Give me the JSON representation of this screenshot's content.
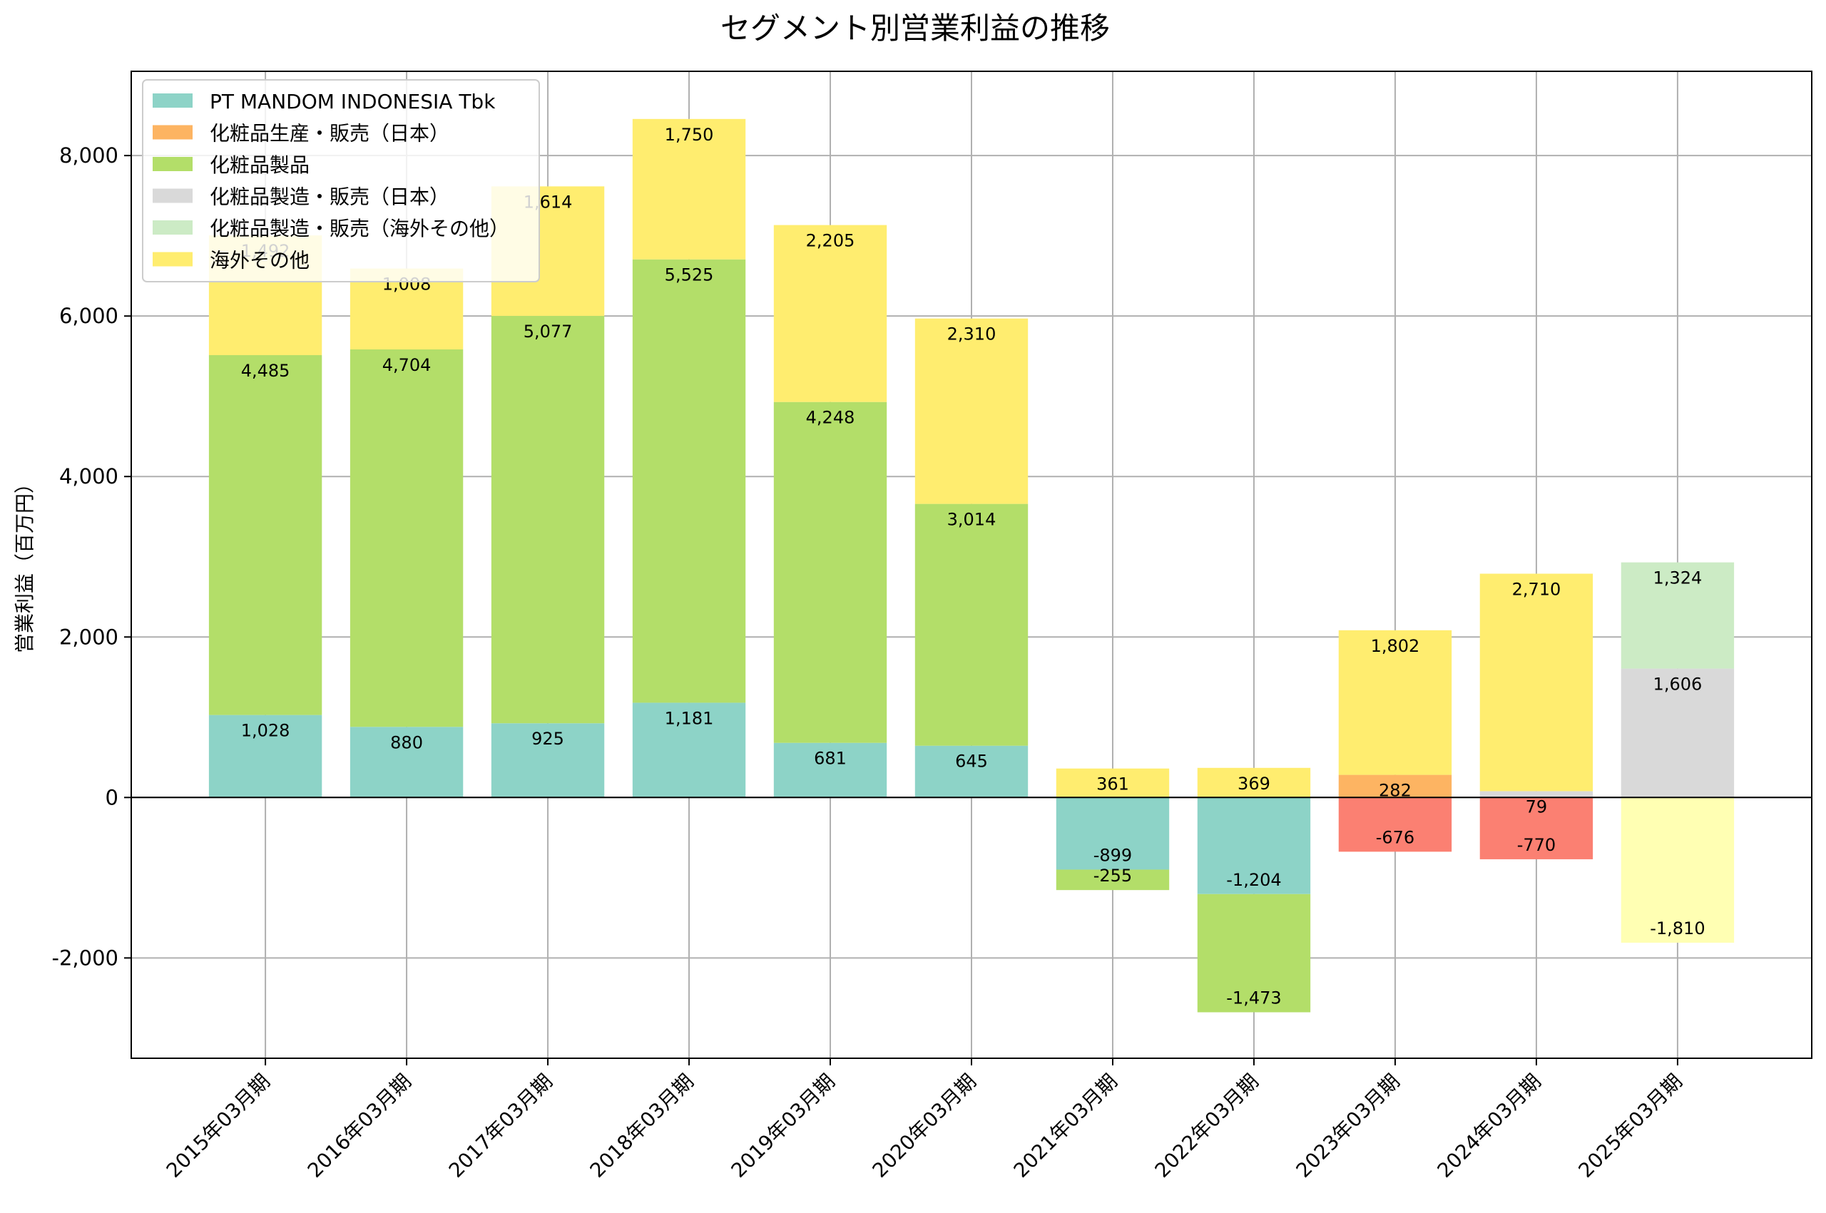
{
  "chart_data": {
    "type": "bar",
    "stacked": true,
    "title": "セグメント別営業利益の推移",
    "xlabel": "",
    "ylabel": "営業利益（百万円）",
    "ylim": [
      -3250,
      9050
    ],
    "yticks": [
      -2000,
      0,
      2000,
      4000,
      6000,
      8000
    ],
    "ytick_labels": [
      "-2,000",
      "0",
      "2,000",
      "4,000",
      "6,000",
      "8,000"
    ],
    "grid": true,
    "legend_position": "top-left",
    "categories": [
      "2015年03月期",
      "2016年03月期",
      "2017年03月期",
      "2018年03月期",
      "2019年03月期",
      "2020年03月期",
      "2021年03月期",
      "2022年03月期",
      "2023年03月期",
      "2024年03月期",
      "2025年03月期"
    ],
    "series": [
      {
        "name": "PT MANDOM INDONESIA Tbk",
        "color": "#8dd3c7",
        "legend": true,
        "values": [
          1028,
          880,
          925,
          1181,
          681,
          645,
          -899,
          -1204,
          null,
          null,
          null
        ],
        "labels": [
          "1,028",
          "880",
          "925",
          "1,181",
          "681",
          "645",
          "-899",
          "-1,204",
          "",
          "",
          ""
        ]
      },
      {
        "name": "化粧品生産・販売（日本）",
        "color": "#fdb462",
        "legend": true,
        "values": [
          null,
          null,
          null,
          null,
          null,
          null,
          null,
          null,
          282,
          null,
          null
        ],
        "labels": [
          "",
          "",
          "",
          "",
          "",
          "",
          "",
          "",
          "282",
          "",
          ""
        ]
      },
      {
        "name": "化粧品製品",
        "color": "#b3de69",
        "legend": true,
        "values": [
          4485,
          4704,
          5077,
          5525,
          4248,
          3014,
          -255,
          -1473,
          null,
          null,
          null
        ],
        "labels": [
          "4,485",
          "4,704",
          "5,077",
          "5,525",
          "4,248",
          "3,014",
          "-255",
          "-1,473",
          "",
          "",
          ""
        ]
      },
      {
        "name": "化粧品製造・販売（日本）",
        "color": "#d9d9d9",
        "legend": true,
        "values": [
          null,
          null,
          null,
          null,
          null,
          null,
          null,
          null,
          null,
          79,
          1606
        ],
        "labels": [
          "",
          "",
          "",
          "",
          "",
          "",
          "",
          "",
          "",
          "79",
          "1,606"
        ]
      },
      {
        "name": "化粧品製造・販売（海外その他）",
        "color": "#ccebc5",
        "legend": true,
        "values": [
          null,
          null,
          null,
          null,
          null,
          null,
          null,
          null,
          null,
          null,
          1324
        ],
        "labels": [
          "",
          "",
          "",
          "",
          "",
          "",
          "",
          "",
          "",
          "",
          "1,324"
        ]
      },
      {
        "name": "海外その他",
        "color": "#ffed6f",
        "legend": true,
        "values": [
          1492,
          1008,
          1614,
          1750,
          2205,
          2310,
          361,
          369,
          1802,
          2710,
          null
        ],
        "labels": [
          "1,492",
          "1,008",
          "1,614",
          "1,750",
          "2,205",
          "2,310",
          "361",
          "369",
          "1,802",
          "2,710",
          ""
        ]
      },
      {
        "name": "",
        "color": "#fb8072",
        "legend": false,
        "values": [
          null,
          null,
          null,
          null,
          null,
          null,
          null,
          null,
          -676,
          -770,
          null
        ],
        "labels": [
          "",
          "",
          "",
          "",
          "",
          "",
          "",
          "",
          "-676",
          "-770",
          ""
        ]
      },
      {
        "name": "",
        "color": "#ffffb3",
        "legend": false,
        "values": [
          null,
          null,
          null,
          null,
          null,
          null,
          null,
          null,
          null,
          null,
          -1810
        ],
        "labels": [
          "",
          "",
          "",
          "",
          "",
          "",
          "",
          "",
          "",
          "",
          "-1,810"
        ]
      }
    ]
  }
}
